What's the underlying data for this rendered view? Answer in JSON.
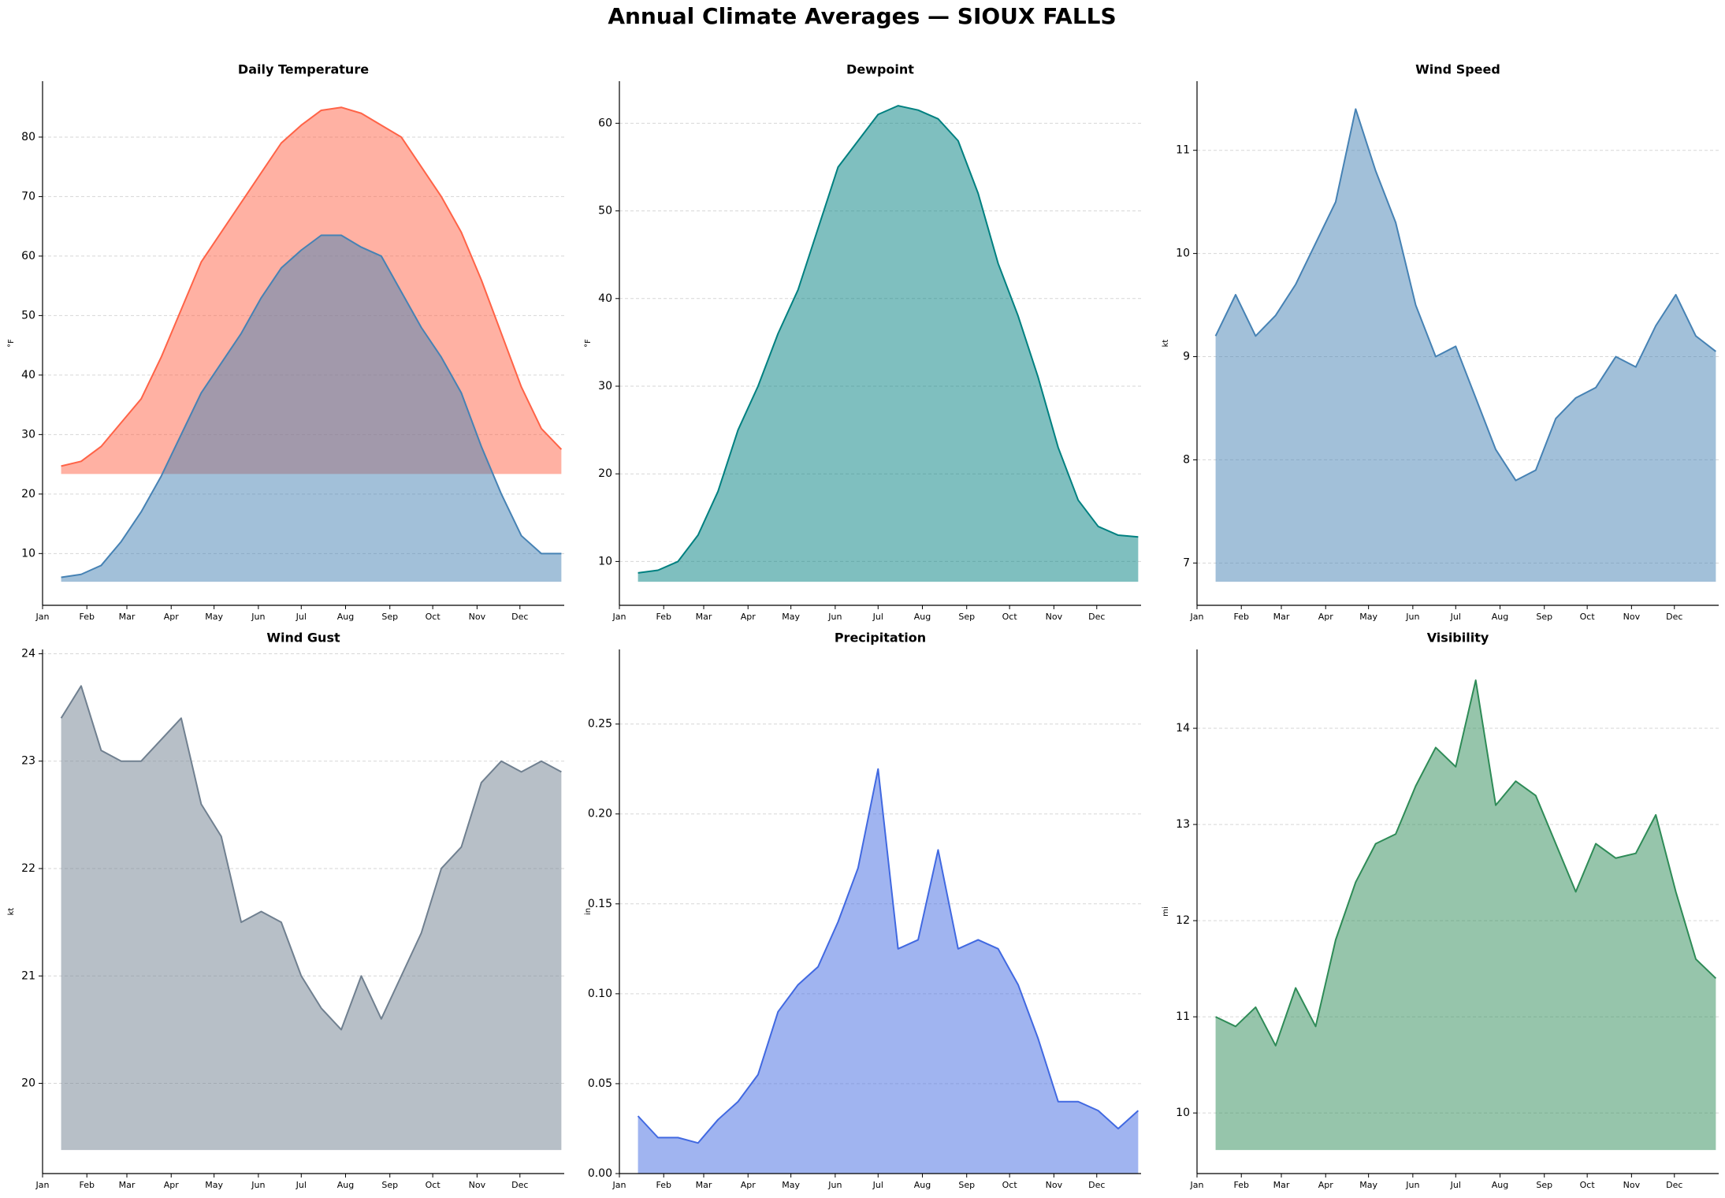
{
  "title": "Annual Climate Averages — SIOUX FALLS",
  "chart_data": [
    {
      "type": "area",
      "title": "Daily Temperature",
      "ylabel": "°F",
      "x": [
        14,
        28,
        42,
        56,
        70,
        84,
        98,
        112,
        126,
        140,
        154,
        168,
        182,
        196,
        210,
        224,
        238,
        252,
        266,
        280,
        294,
        308,
        322,
        336,
        350,
        364
      ],
      "series": [
        {
          "color": "#ff6347",
          "values": [
            24.7,
            25.5,
            28,
            32,
            36,
            43,
            51,
            59,
            64,
            69,
            74,
            79,
            82,
            84.5,
            85,
            84,
            82,
            80,
            75,
            70,
            64,
            56,
            47,
            38,
            31,
            27.5
          ]
        },
        {
          "color": "#4682b4",
          "values": [
            6,
            6.5,
            8,
            12,
            17,
            23,
            30,
            37,
            42,
            47,
            53,
            58,
            61,
            63.5,
            63.5,
            61.5,
            60,
            54,
            48,
            43,
            37,
            28,
            20,
            13,
            10,
            10
          ]
        }
      ],
      "xlim": [
        1,
        366
      ],
      "xticks": [
        {
          "value": 1,
          "label": "Jan"
        },
        {
          "value": 32,
          "label": "Feb"
        },
        {
          "value": 60,
          "label": "Mar"
        },
        {
          "value": 91,
          "label": "Apr"
        },
        {
          "value": 121,
          "label": "May"
        },
        {
          "value": 152,
          "label": "Jun"
        },
        {
          "value": 182,
          "label": "Jul"
        },
        {
          "value": 213,
          "label": "Aug"
        },
        {
          "value": 244,
          "label": "Sep"
        },
        {
          "value": 274,
          "label": "Oct"
        },
        {
          "value": 305,
          "label": "Nov"
        },
        {
          "value": 335,
          "label": "Dec"
        }
      ],
      "ylim": [
        1.3,
        89.4
      ],
      "yticks": [
        10,
        20,
        30,
        40,
        50,
        60,
        70,
        80
      ],
      "grid": true
    },
    {
      "type": "area",
      "title": "Dewpoint",
      "ylabel": "°F",
      "x": [
        14,
        28,
        42,
        56,
        70,
        84,
        98,
        112,
        126,
        140,
        154,
        168,
        182,
        196,
        210,
        224,
        238,
        252,
        266,
        280,
        294,
        308,
        322,
        336,
        350,
        364
      ],
      "series": [
        {
          "color": "#008080",
          "values": [
            8.7,
            9,
            10,
            13,
            18,
            25,
            30,
            36,
            41,
            48,
            55,
            58,
            61,
            62,
            61.5,
            60.5,
            58,
            52,
            44,
            38,
            31,
            23,
            17,
            14,
            13,
            12.8
          ]
        }
      ],
      "xlim": [
        1,
        366
      ],
      "xticks": [
        {
          "value": 1,
          "label": "Jan"
        },
        {
          "value": 32,
          "label": "Feb"
        },
        {
          "value": 60,
          "label": "Mar"
        },
        {
          "value": 91,
          "label": "Apr"
        },
        {
          "value": 121,
          "label": "May"
        },
        {
          "value": 152,
          "label": "Jun"
        },
        {
          "value": 182,
          "label": "Jul"
        },
        {
          "value": 213,
          "label": "Aug"
        },
        {
          "value": 244,
          "label": "Sep"
        },
        {
          "value": 274,
          "label": "Oct"
        },
        {
          "value": 305,
          "label": "Nov"
        },
        {
          "value": 335,
          "label": "Dec"
        }
      ],
      "ylim": [
        5,
        64.8
      ],
      "yticks": [
        10,
        20,
        30,
        40,
        50,
        60
      ],
      "grid": true
    },
    {
      "type": "area",
      "title": "Wind Speed",
      "ylabel": "kt",
      "x": [
        14,
        28,
        42,
        56,
        70,
        84,
        98,
        112,
        126,
        140,
        154,
        168,
        182,
        196,
        210,
        224,
        238,
        252,
        266,
        280,
        294,
        308,
        322,
        336,
        350,
        364
      ],
      "series": [
        {
          "color": "#4682b4",
          "values": [
            9.2,
            9.6,
            9.2,
            9.4,
            9.7,
            10.1,
            10.5,
            11.4,
            10.8,
            10.3,
            9.5,
            9.0,
            9.1,
            8.6,
            8.1,
            7.8,
            7.9,
            8.4,
            8.6,
            8.7,
            9.0,
            8.9,
            9.3,
            9.6,
            9.2,
            9.05
          ]
        }
      ],
      "xlim": [
        1,
        366
      ],
      "xticks": [
        {
          "value": 1,
          "label": "Jan"
        },
        {
          "value": 32,
          "label": "Feb"
        },
        {
          "value": 60,
          "label": "Mar"
        },
        {
          "value": 91,
          "label": "Apr"
        },
        {
          "value": 121,
          "label": "May"
        },
        {
          "value": 152,
          "label": "Jun"
        },
        {
          "value": 182,
          "label": "Jul"
        },
        {
          "value": 213,
          "label": "Aug"
        },
        {
          "value": 244,
          "label": "Sep"
        },
        {
          "value": 274,
          "label": "Oct"
        },
        {
          "value": 305,
          "label": "Nov"
        },
        {
          "value": 335,
          "label": "Dec"
        }
      ],
      "ylim": [
        6.59,
        11.67
      ],
      "yticks": [
        7,
        8,
        9,
        10,
        11
      ],
      "grid": true
    },
    {
      "type": "area",
      "title": "Wind Gust",
      "ylabel": "kt",
      "x": [
        14,
        28,
        42,
        56,
        70,
        84,
        98,
        112,
        126,
        140,
        154,
        168,
        182,
        196,
        210,
        224,
        238,
        252,
        266,
        280,
        294,
        308,
        322,
        336,
        350,
        364
      ],
      "series": [
        {
          "color": "#708090",
          "values": [
            23.4,
            23.7,
            23.1,
            23.0,
            23.0,
            23.2,
            23.4,
            22.6,
            22.3,
            21.5,
            21.6,
            21.5,
            21.0,
            20.7,
            20.5,
            21.0,
            20.6,
            21.0,
            21.4,
            22.0,
            22.2,
            22.8,
            23.0,
            22.9,
            23.0,
            22.9
          ]
        }
      ],
      "xlim": [
        1,
        366
      ],
      "xticks": [
        {
          "value": 1,
          "label": "Jan"
        },
        {
          "value": 32,
          "label": "Feb"
        },
        {
          "value": 60,
          "label": "Mar"
        },
        {
          "value": 91,
          "label": "Apr"
        },
        {
          "value": 121,
          "label": "May"
        },
        {
          "value": 152,
          "label": "Jun"
        },
        {
          "value": 182,
          "label": "Jul"
        },
        {
          "value": 213,
          "label": "Aug"
        },
        {
          "value": 244,
          "label": "Sep"
        },
        {
          "value": 274,
          "label": "Oct"
        },
        {
          "value": 305,
          "label": "Nov"
        },
        {
          "value": 335,
          "label": "Dec"
        }
      ],
      "ylim": [
        19.16,
        24.04
      ],
      "yticks": [
        20,
        21,
        22,
        23,
        24
      ],
      "grid": true
    },
    {
      "type": "area",
      "title": "Precipitation",
      "ylabel": "in",
      "x": [
        14,
        28,
        42,
        56,
        70,
        84,
        98,
        112,
        126,
        140,
        154,
        168,
        182,
        196,
        210,
        224,
        238,
        252,
        266,
        280,
        294,
        308,
        322,
        336,
        350,
        364
      ],
      "series": [
        {
          "color": "#4169e1",
          "values": [
            0.032,
            0.02,
            0.02,
            0.017,
            0.03,
            0.04,
            0.055,
            0.09,
            0.105,
            0.115,
            0.14,
            0.17,
            0.225,
            0.125,
            0.13,
            0.18,
            0.125,
            0.13,
            0.125,
            0.105,
            0.075,
            0.04,
            0.04,
            0.035,
            0.025,
            0.035
          ]
        }
      ],
      "xlim": [
        1,
        366
      ],
      "xticks": [
        {
          "value": 1,
          "label": "Jan"
        },
        {
          "value": 32,
          "label": "Feb"
        },
        {
          "value": 60,
          "label": "Mar"
        },
        {
          "value": 91,
          "label": "Apr"
        },
        {
          "value": 121,
          "label": "May"
        },
        {
          "value": 152,
          "label": "Jun"
        },
        {
          "value": 182,
          "label": "Jul"
        },
        {
          "value": 213,
          "label": "Aug"
        },
        {
          "value": 244,
          "label": "Sep"
        },
        {
          "value": 274,
          "label": "Oct"
        },
        {
          "value": 305,
          "label": "Nov"
        },
        {
          "value": 335,
          "label": "Dec"
        }
      ],
      "ylim": [
        0,
        0.2915
      ],
      "yticks": [
        {
          "value": 0,
          "label": "0.00"
        },
        0.05,
        {
          "value": 0.1,
          "label": "0.10"
        },
        0.15,
        {
          "value": 0.2,
          "label": "0.20"
        },
        0.25
      ],
      "grid": true
    },
    {
      "type": "area",
      "title": "Visibility",
      "ylabel": "mi",
      "x": [
        14,
        28,
        42,
        56,
        70,
        84,
        98,
        112,
        126,
        140,
        154,
        168,
        182,
        196,
        210,
        224,
        238,
        252,
        266,
        280,
        294,
        308,
        322,
        336,
        350,
        364
      ],
      "series": [
        {
          "color": "#2e8b57",
          "values": [
            11.0,
            10.9,
            11.1,
            10.7,
            11.3,
            10.9,
            11.8,
            12.4,
            12.8,
            12.9,
            13.4,
            13.8,
            13.6,
            14.5,
            13.2,
            13.45,
            13.3,
            12.8,
            12.3,
            12.8,
            12.65,
            12.7,
            13.1,
            12.3,
            11.6,
            11.4
          ]
        }
      ],
      "xlim": [
        1,
        366
      ],
      "xticks": [
        {
          "value": 1,
          "label": "Jan"
        },
        {
          "value": 32,
          "label": "Feb"
        },
        {
          "value": 60,
          "label": "Mar"
        },
        {
          "value": 91,
          "label": "Apr"
        },
        {
          "value": 121,
          "label": "May"
        },
        {
          "value": 152,
          "label": "Jun"
        },
        {
          "value": 182,
          "label": "Jul"
        },
        {
          "value": 213,
          "label": "Aug"
        },
        {
          "value": 244,
          "label": "Sep"
        },
        {
          "value": 274,
          "label": "Oct"
        },
        {
          "value": 305,
          "label": "Nov"
        },
        {
          "value": 335,
          "label": "Dec"
        }
      ],
      "ylim": [
        9.37,
        14.82
      ],
      "yticks": [
        10,
        11,
        12,
        13,
        14
      ],
      "grid": true
    }
  ]
}
